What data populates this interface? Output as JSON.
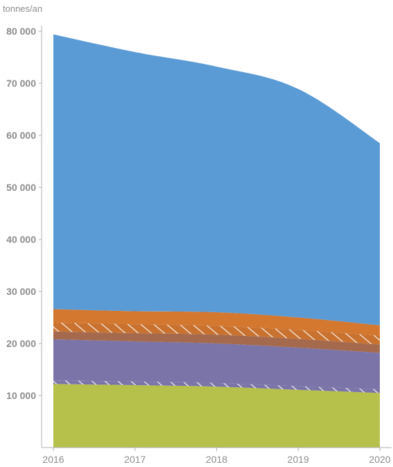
{
  "chart_data": {
    "type": "area",
    "stacked": true,
    "ylabel": "tonnes/an",
    "ylim": [
      0,
      80000
    ],
    "yticks": [
      10000,
      20000,
      30000,
      40000,
      50000,
      60000,
      70000,
      80000
    ],
    "ytick_labels": [
      "10 000",
      "20 000",
      "30 000",
      "40 000",
      "50 000",
      "60 000",
      "70 000",
      "80 000"
    ],
    "x": [
      2016,
      2017,
      2018,
      2019,
      2020
    ],
    "xtick_labels": [
      "2016",
      "2017",
      "2018",
      "2019",
      "2020"
    ],
    "grid": false,
    "legend": "none",
    "series": [
      {
        "color": "#b5c14a",
        "values": [
          12200,
          12000,
          11700,
          11100,
          10500
        ],
        "pattern": "none"
      },
      {
        "color": "#7b74a8",
        "values": [
          700,
          700,
          700,
          700,
          700
        ],
        "pattern": "hatched"
      },
      {
        "color": "#7b74a8",
        "values": [
          7900,
          7700,
          7600,
          7400,
          7000
        ],
        "pattern": "none"
      },
      {
        "color": "#a56a4e",
        "values": [
          1500,
          1600,
          1700,
          1700,
          1600
        ],
        "pattern": "none"
      },
      {
        "color": "#c9722f",
        "values": [
          1700,
          1700,
          1700,
          1700,
          1700
        ],
        "pattern": "hatched"
      },
      {
        "color": "#d4772f",
        "values": [
          2600,
          2500,
          2600,
          2400,
          2000
        ],
        "pattern": "none"
      },
      {
        "color": "#5b9bd5",
        "values": [
          52800,
          49800,
          47200,
          43900,
          35000
        ],
        "pattern": "none"
      }
    ]
  }
}
